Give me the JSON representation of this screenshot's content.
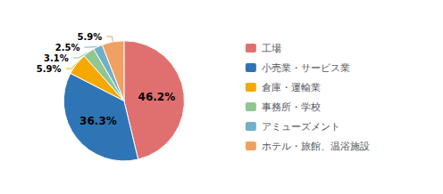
{
  "chart_data": {
    "type": "pie",
    "categories": [
      "工場",
      "小売業・サービス業",
      "倉庫・運輸業",
      "事務所・学校",
      "アミューズメント",
      "ホテル・旅館、温浴施設"
    ],
    "values": [
      46.2,
      36.3,
      5.9,
      3.1,
      2.5,
      5.9
    ],
    "value_labels": [
      "46.2%",
      "36.3%",
      "5.9%",
      "3.1%",
      "2.5%",
      "5.9%"
    ],
    "colors": [
      "#E07070",
      "#2E75B6",
      "#F5A800",
      "#90C690",
      "#72B0C8",
      "#F0A060"
    ],
    "data_labels": true,
    "legend": "right"
  }
}
